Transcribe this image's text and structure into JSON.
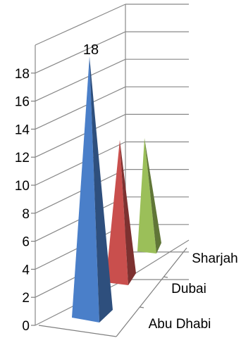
{
  "chart_data": {
    "type": "bar",
    "subtype": "3d-pyramid",
    "categories": [
      "Abu Dhabi",
      "Dubai",
      "Sharjah"
    ],
    "values": [
      18,
      9.5,
      9.3
    ],
    "data_labels": [
      "18",
      "",
      ""
    ],
    "y_ticks": [
      "0",
      "2",
      "4",
      "6",
      "8",
      "10",
      "12",
      "14",
      "16",
      "18"
    ],
    "ylim": [
      0,
      20
    ],
    "grid": true,
    "legend": "none",
    "title": "",
    "xlabel": "",
    "ylabel": "",
    "colors": {
      "Abu Dhabi": "#4a7fc9",
      "Dubai": "#c94f4d",
      "Sharjah": "#9bbf59",
      "grid": "#888888",
      "axis": "#7f7f7f"
    }
  }
}
